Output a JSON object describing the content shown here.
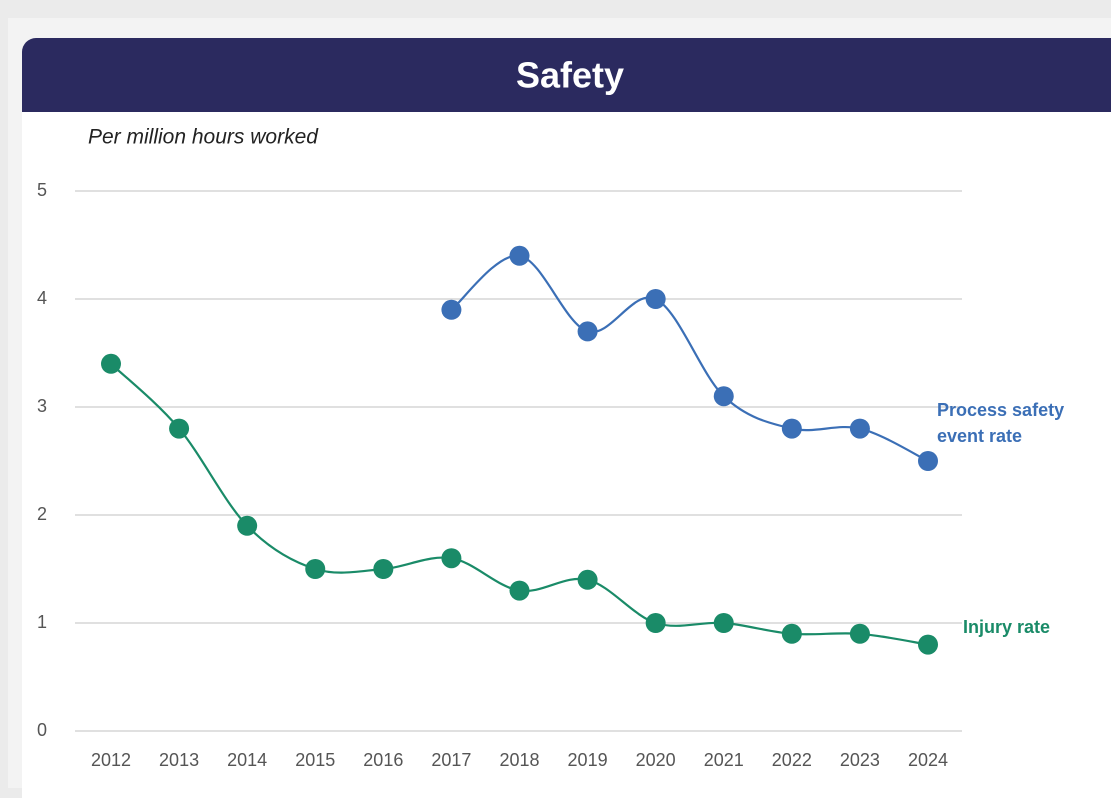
{
  "chart_data": {
    "type": "line",
    "title": "Safety",
    "subtitle": "Per million hours worked",
    "categories": [
      "2012",
      "2013",
      "2014",
      "2015",
      "2016",
      "2017",
      "2018",
      "2019",
      "2020",
      "2021",
      "2022",
      "2023",
      "2024"
    ],
    "series": [
      {
        "name": "Process safety event rate",
        "color": "#3b6fb6",
        "values": [
          null,
          null,
          null,
          null,
          null,
          3.9,
          4.4,
          3.7,
          4.0,
          3.1,
          2.8,
          2.8,
          2.5
        ]
      },
      {
        "name": "Injury rate",
        "color": "#1a8b68",
        "values": [
          3.4,
          2.8,
          1.9,
          1.5,
          1.5,
          1.6,
          1.3,
          1.4,
          1.0,
          1.0,
          0.9,
          0.9,
          0.8
        ]
      }
    ],
    "ylim": [
      0,
      5
    ],
    "yticks": [
      0,
      1,
      2,
      3,
      4,
      5
    ],
    "grid": true
  }
}
